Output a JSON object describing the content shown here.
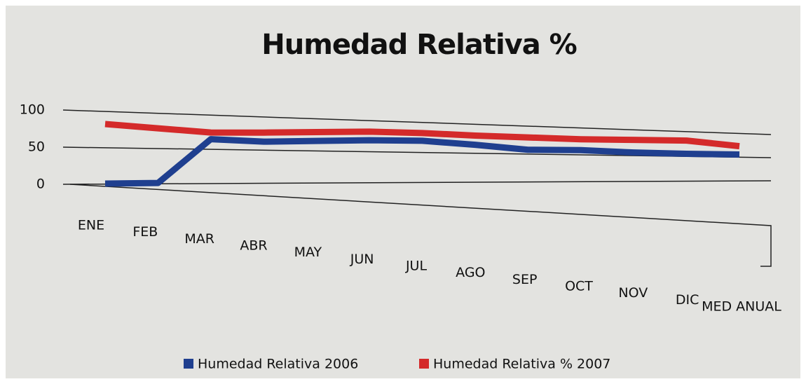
{
  "chart_data": {
    "type": "line",
    "title": "Humedad Relativa %",
    "categories": [
      "ENE",
      "FEB",
      "MAR",
      "ABR",
      "MAY",
      "JUN",
      "JUL",
      "AGO",
      "SEP",
      "OCT",
      "NOV",
      "DIC",
      "MED ANUAL"
    ],
    "series": [
      {
        "name": "Humedad Relativa 2006",
        "color": "#1f3f8f",
        "values": [
          0,
          0,
          65,
          62,
          64,
          66,
          66,
          60,
          52,
          52,
          48,
          46,
          45
        ]
      },
      {
        "name": "Humedad Relativa % 2007",
        "color": "#d42a2a",
        "values": [
          85,
          80,
          75,
          76,
          78,
          80,
          79,
          76,
          74,
          72,
          72,
          72,
          62
        ]
      }
    ],
    "ylim": [
      0,
      100
    ],
    "yticks": [
      0,
      50,
      100
    ],
    "grid": true,
    "legend": "bottom"
  }
}
